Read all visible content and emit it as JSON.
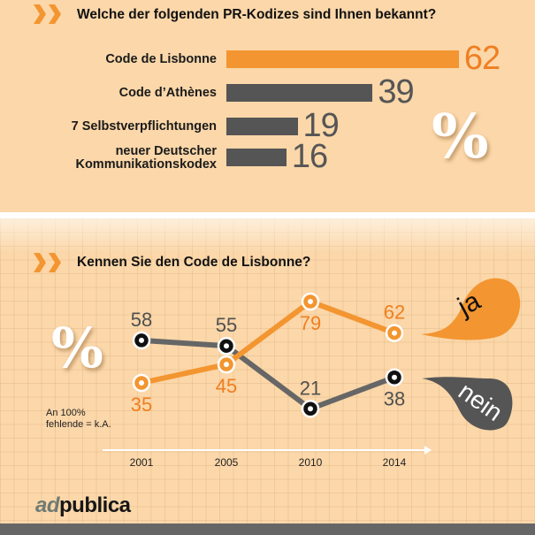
{
  "colors": {
    "orange": "#f39530",
    "gray": "#555555",
    "background": "#fbd7a9",
    "footer": "#666666"
  },
  "section1": {
    "title": "Welche der folgenden PR-Kodizes sind Ihnen bekannt?",
    "percent_symbol": "%"
  },
  "section2": {
    "title": "Kennen Sie den Code de Lisbonne?",
    "percent_symbol": "%",
    "note_line1": "An 100%",
    "note_line2": "fehlende = k.A."
  },
  "logo": {
    "part1": "ad",
    "part2": "publica"
  },
  "chart_data": [
    {
      "type": "bar",
      "orientation": "horizontal",
      "title": "Welche der folgenden PR-Kodizes sind Ihnen bekannt?",
      "unit": "%",
      "categories": [
        "Code de Lisbonne",
        "Code d’Athènes",
        "7 Selbstverpflichtungen",
        "neuer Deutscher Kommunikationskodex"
      ],
      "category_lines": [
        [
          "Code de Lisbonne"
        ],
        [
          "Code d’Athènes"
        ],
        [
          "7 Selbstverpflichtungen"
        ],
        [
          "neuer Deutscher",
          "Kommunikationskodex"
        ]
      ],
      "values": [
        62,
        39,
        19,
        16
      ],
      "highlight": [
        true,
        false,
        false,
        false
      ],
      "xlim": [
        0,
        62
      ]
    },
    {
      "type": "line",
      "title": "Kennen Sie den Code de Lisbonne?",
      "unit": "%",
      "x": [
        "2001",
        "2005",
        "2010",
        "2014"
      ],
      "series": [
        {
          "name": "ja",
          "values": [
            35,
            45,
            79,
            62
          ],
          "color": "#f39530"
        },
        {
          "name": "nein",
          "values": [
            58,
            55,
            21,
            38
          ],
          "color": "#555555"
        }
      ],
      "ylim": [
        0,
        100
      ],
      "grid": true,
      "legend": "right",
      "annotation": "An 100% fehlende = k.A."
    }
  ]
}
